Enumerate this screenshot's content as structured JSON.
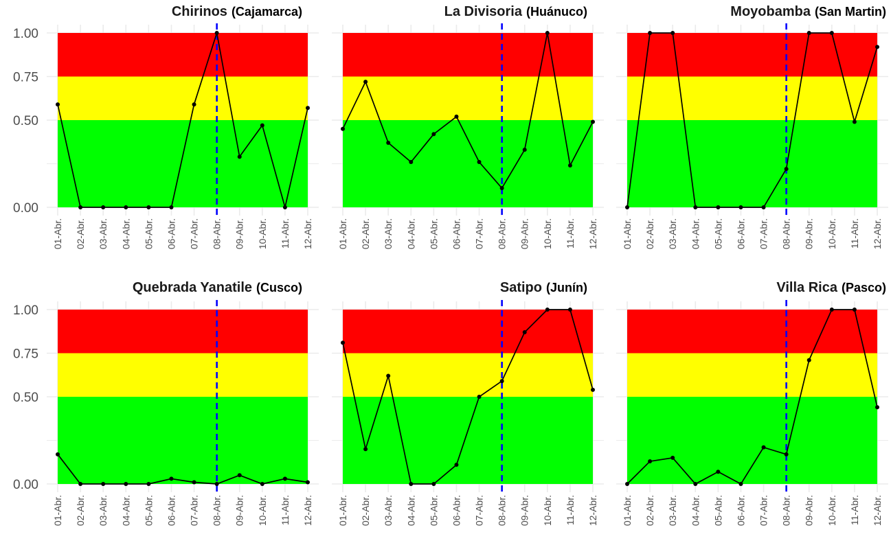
{
  "chart_data": {
    "type": "line",
    "categories": [
      "01-Abr.",
      "02-Abr.",
      "03-Abr.",
      "04-Abr.",
      "05-Abr.",
      "06-Abr.",
      "07-Abr.",
      "08-Abr.",
      "09-Abr.",
      "10-Abr.",
      "11-Abr.",
      "12-Abr."
    ],
    "ylim": [
      0,
      1
    ],
    "yticks": [
      "0.00",
      "0.50",
      "0.75",
      "1.00"
    ],
    "yticks_values": [
      0,
      0.5,
      0.75,
      1
    ],
    "bands": [
      {
        "from": 0,
        "to": 0.5,
        "color": "#00ff00"
      },
      {
        "from": 0.5,
        "to": 0.75,
        "color": "#ffff00"
      },
      {
        "from": 0.75,
        "to": 1,
        "color": "#ff0000"
      }
    ],
    "reference_line": {
      "x": "08-Abr.",
      "color": "#0000ff",
      "style": "dashed"
    },
    "grid": true,
    "line_color": "#000000",
    "panels": [
      {
        "title": "Chirinos",
        "subtitle": "(Cajamarca)",
        "values": [
          0.59,
          0,
          0,
          0,
          0,
          0,
          0.59,
          1.0,
          0.29,
          0.47,
          0,
          0.57
        ]
      },
      {
        "title": "La Divisoria",
        "subtitle": "(Huánuco)",
        "values": [
          0.45,
          0.72,
          0.37,
          0.26,
          0.42,
          0.52,
          0.26,
          0.11,
          0.33,
          1.0,
          0.24,
          0.49
        ]
      },
      {
        "title": "Moyobamba",
        "subtitle": "(San Martin)",
        "values": [
          0,
          1.0,
          1.0,
          0,
          0,
          0,
          0,
          0.22,
          1.0,
          1.0,
          0.49,
          0.92
        ]
      },
      {
        "title": "Quebrada Yanatile",
        "subtitle": "(Cusco)",
        "values": [
          0.17,
          0,
          0,
          0,
          0,
          0.03,
          0.01,
          0,
          0.05,
          0,
          0.03,
          0.01
        ]
      },
      {
        "title": "Satipo",
        "subtitle": "(Junín)",
        "values": [
          0.81,
          0.2,
          0.62,
          0,
          0,
          0.11,
          0.5,
          0.59,
          0.87,
          1.0,
          1.0,
          0.54
        ]
      },
      {
        "title": "Villa Rica",
        "subtitle": "(Pasco)",
        "values": [
          0,
          0.13,
          0.15,
          0,
          0.07,
          0,
          0.21,
          0.17,
          0.71,
          1.0,
          1.0,
          0.44
        ]
      }
    ]
  }
}
